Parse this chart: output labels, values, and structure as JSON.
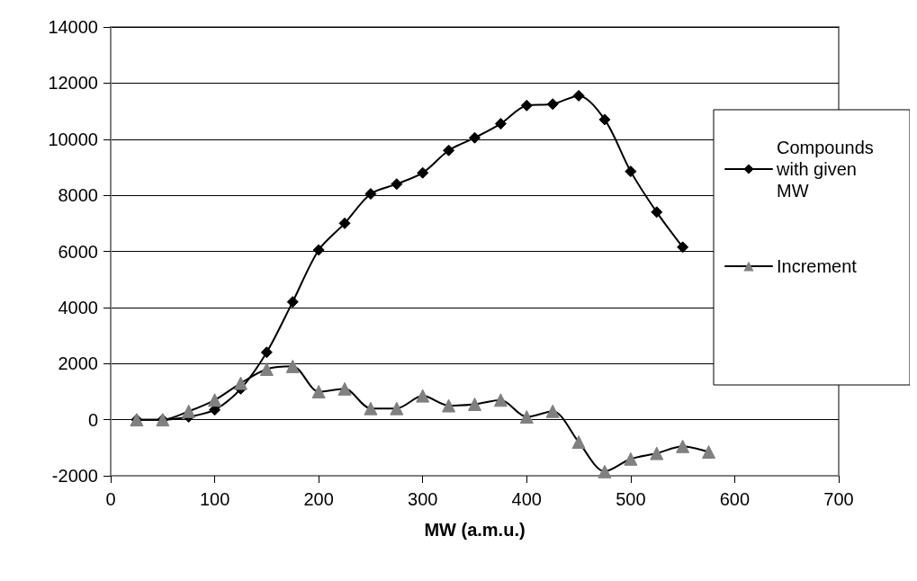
{
  "chart_data": {
    "type": "line",
    "xlabel": "MW (a.m.u.)",
    "x": [
      25,
      50,
      75,
      100,
      125,
      150,
      175,
      200,
      225,
      250,
      275,
      300,
      325,
      350,
      375,
      400,
      425,
      450,
      475,
      500,
      525,
      550,
      575
    ],
    "series": [
      {
        "name": "Compounds with given MW",
        "color": "#000000",
        "marker": "diamond",
        "values": [
          0,
          0,
          100,
          350,
          1100,
          2400,
          4200,
          6050,
          7000,
          8050,
          8400,
          8800,
          9600,
          10050,
          10550,
          11200,
          11250,
          11550,
          10700,
          8850,
          7400,
          6150,
          null
        ]
      },
      {
        "name": "Increment",
        "color": "#808080",
        "marker": "triangle",
        "values": [
          0,
          0,
          300,
          700,
          1300,
          1800,
          1900,
          1000,
          1100,
          400,
          400,
          850,
          500,
          550,
          700,
          100,
          300,
          -800,
          -1850,
          -1400,
          -1200,
          -950,
          -1150
        ]
      }
    ],
    "xlim": [
      0,
      700
    ],
    "xticks": [
      0,
      100,
      200,
      300,
      400,
      500,
      600,
      700
    ],
    "ylim": [
      -2000,
      14000
    ],
    "yticks": [
      -2000,
      0,
      2000,
      4000,
      6000,
      8000,
      10000,
      12000,
      14000
    ],
    "grid": "y",
    "legend": "right",
    "line_style": "solid"
  }
}
